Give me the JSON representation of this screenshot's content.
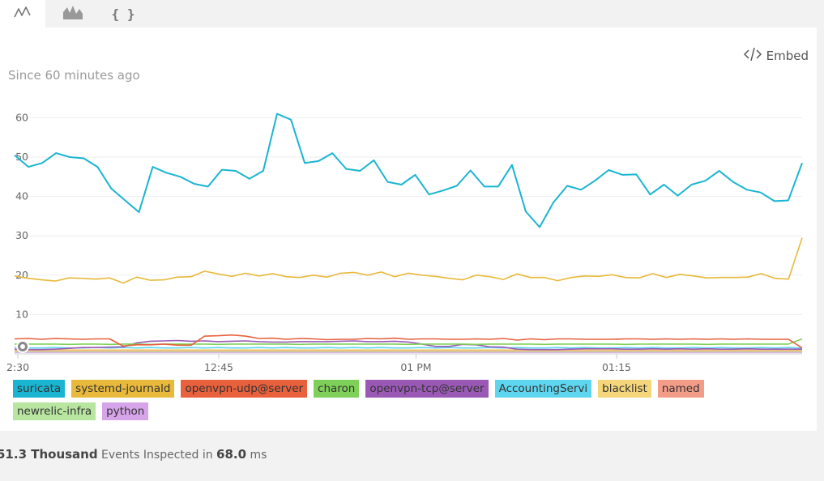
{
  "tabs": [
    {
      "name": "line-chart-icon",
      "active": true
    },
    {
      "name": "area-chart-icon",
      "active": false
    },
    {
      "name": "json-icon",
      "label": "{ }",
      "active": false
    }
  ],
  "header": {
    "since": "Since 60 minutes ago",
    "embed_label": "Embed"
  },
  "chart_data": {
    "type": "line",
    "x_ticks": [
      "2:30",
      "12:45",
      "01 PM",
      "01:15"
    ],
    "y_ticks": [
      10,
      20,
      30,
      40,
      50,
      60
    ],
    "ylim": [
      0,
      70
    ],
    "grid": true,
    "series": [
      {
        "name": "suricata",
        "color": "#1ab5d1",
        "values": [
          50.5,
          47.5,
          48.5,
          51,
          50,
          49.7,
          47.5,
          42,
          39,
          36,
          47.5,
          46,
          45,
          43.2,
          42.5,
          46.8,
          46.5,
          44.5,
          46.5,
          61,
          59.5,
          48.5,
          49,
          51,
          47,
          46.5,
          49.2,
          43.7,
          43,
          45.5,
          40.5,
          41.5,
          42.7,
          46.6,
          42.5,
          42.5,
          48,
          36.2,
          32.2,
          38.5,
          42.7,
          41.7,
          44,
          46.7,
          45.5,
          45.6,
          40.5,
          43,
          40.2,
          43,
          44,
          46.5,
          43.7,
          41.7,
          41,
          38.8,
          39,
          48.5
        ]
      },
      {
        "name": "systemd-journald",
        "color": "#e8b93a",
        "values": [
          19.8,
          19.2,
          18.8,
          18.5,
          19.3,
          19.2,
          19,
          19.3,
          18,
          19.5,
          18.7,
          18.8,
          19.5,
          19.6,
          21,
          20.3,
          19.7,
          20.5,
          19.8,
          20.4,
          19.6,
          19.4,
          20,
          19.5,
          20.5,
          20.7,
          20,
          20.8,
          19.6,
          20.5,
          20,
          19.7,
          19.2,
          18.8,
          20,
          19.6,
          18.9,
          20.3,
          19.4,
          19.4,
          18.6,
          19.4,
          19.8,
          19.7,
          20.1,
          19.4,
          19.3,
          20.4,
          19.4,
          20.2,
          19.8,
          19.3,
          19.4,
          19.4,
          19.5,
          20.4,
          19.2,
          19,
          29.5
        ]
      },
      {
        "name": "openvpn-udp@server",
        "color": "#e8603c",
        "values": [
          3.8,
          3.9,
          3.7,
          3.9,
          3.8,
          3.7,
          3.8,
          3.8,
          2,
          2.3,
          2.3,
          2.5,
          2.2,
          2.2,
          4.5,
          4.6,
          4.8,
          4.5,
          3.9,
          4,
          3.7,
          3.9,
          3.8,
          3.6,
          3.7,
          3.7,
          3.9,
          3.8,
          4,
          3.7,
          3.8,
          3.8,
          3.7,
          3.7,
          3.8,
          3.7,
          3.9,
          3.5,
          3.8,
          3.6,
          3.8,
          3.8,
          3.7,
          3.7,
          3.7,
          3.8,
          3.8,
          3.7,
          3.8,
          3.7,
          3.8,
          3.7,
          3.8,
          3.7,
          3.8,
          3.7,
          3.7,
          3.7,
          1.5
        ]
      },
      {
        "name": "charon",
        "color": "#7ed058",
        "values": [
          2.5,
          2.5,
          2.5,
          2.5,
          2.4,
          2.5,
          2.5,
          2.4,
          2.5,
          2.5,
          2.4,
          2.5,
          2.5,
          2.5,
          2.5,
          2.4,
          2.5,
          2.5,
          2.5,
          2.5,
          2.5,
          2.4,
          2.5,
          2.5,
          2.5,
          2.5,
          2.5,
          2.5,
          2.5,
          2.4,
          2.5,
          2.5,
          2.5,
          2.5,
          2.4,
          2.5,
          2.5,
          2.5,
          2.5,
          2.4,
          2.5,
          2.5,
          2.5,
          2.5,
          2.5,
          2.4,
          2.5,
          2.5,
          2.5,
          2.5,
          2.5,
          2.4,
          2.5,
          2.5,
          2.5,
          2.5,
          2.5,
          2.5,
          3.8
        ]
      },
      {
        "name": "openvpn-tcp@server",
        "color": "#9b59b6",
        "values": [
          1.2,
          1.1,
          1.1,
          1.2,
          1.4,
          1.6,
          1.6,
          1.7,
          1.8,
          2.8,
          3.2,
          3.3,
          3.4,
          3.2,
          3.3,
          3.1,
          3.2,
          3.3,
          3.1,
          3,
          3,
          3.1,
          3.1,
          3.1,
          3.2,
          3.3,
          3.1,
          3.1,
          3.2,
          3,
          2.5,
          1.9,
          1.9,
          2.4,
          2.3,
          1.8,
          1.7,
          1.2,
          1.1,
          1.1,
          1.1,
          1.2,
          1.3,
          1.3,
          1.3,
          1.2,
          1.2,
          1.3,
          1.2,
          1.3,
          1.2,
          1.3,
          1.2,
          1.2,
          1.3,
          1.2,
          1.2,
          1.2,
          1.2
        ]
      },
      {
        "name": "AccountingServi",
        "color": "#5ed6ef",
        "values": [
          1.6,
          1.5,
          1.5,
          1.6,
          1.5,
          1.5,
          1.6,
          1.5,
          1.6,
          1.5,
          1.6,
          1.5,
          1.5,
          1.6,
          1.5,
          1.6,
          1.5,
          1.5,
          1.6,
          1.5,
          1.6,
          1.5,
          1.5,
          1.6,
          1.5,
          1.6,
          1.5,
          1.6,
          1.5,
          1.5,
          1.6,
          1.5,
          1.6,
          1.5,
          1.5,
          1.6,
          1.5,
          1.6,
          1.5,
          1.5,
          1.6,
          1.5,
          1.6,
          1.5,
          1.5,
          1.6,
          1.5,
          1.6,
          1.5,
          1.5,
          1.6,
          1.5,
          1.6,
          1.5,
          1.5,
          1.6,
          1.5,
          1.6,
          1.5
        ]
      },
      {
        "name": "blacklist",
        "color": "#f5d67a",
        "values": [
          1.0,
          1.0,
          1.0,
          1.0,
          1.0,
          1.0,
          1.0,
          1.0,
          1.0,
          1.0,
          1.0,
          1.0,
          1.0,
          1.0,
          1.0,
          1.0,
          1.0,
          1.0,
          1.0,
          1.0,
          1.0,
          1.0,
          1.0,
          1.0,
          1.0,
          1.0,
          1.0,
          1.0,
          1.0,
          1.0,
          1.0,
          1.0,
          1.0,
          1.0,
          1.0,
          1.0,
          1.0,
          1.0,
          1.0,
          1.0,
          1.0,
          1.0,
          1.0,
          1.0,
          1.0,
          1.0,
          1.0,
          1.0,
          1.0,
          1.0,
          1.0,
          1.0,
          1.0,
          1.0,
          1.0,
          1.0,
          1.0,
          1.0,
          1.0
        ]
      },
      {
        "name": "named",
        "color": "#f39c88",
        "values": [
          0.8,
          0.8,
          0.8,
          0.8,
          0.8,
          0.8,
          0.8,
          0.8,
          0.8,
          0.8,
          0.8,
          0.8,
          0.8,
          0.8,
          0.8,
          0.8,
          0.8,
          0.8,
          0.8,
          0.8,
          0.8,
          0.8,
          0.8,
          0.8,
          0.8,
          0.8,
          0.8,
          0.8,
          0.8,
          0.8,
          0.8,
          0.8,
          0.8,
          0.8,
          0.8,
          0.8,
          0.8,
          0.8,
          0.8,
          0.8,
          0.8,
          0.8,
          0.8,
          0.8,
          0.8,
          0.8,
          0.8,
          0.8,
          0.8,
          0.8,
          0.8,
          0.8,
          0.8,
          0.8,
          0.8,
          0.8,
          0.8,
          0.8,
          0.8
        ]
      },
      {
        "name": "newrelic-infra",
        "color": "#b8e6a0",
        "values": [
          0.6,
          0.6,
          0.6,
          0.6,
          0.6,
          0.6,
          0.6,
          0.6,
          0.6,
          0.6,
          0.6,
          0.6,
          0.6,
          0.6,
          0.6,
          0.6,
          0.6,
          0.6,
          0.6,
          0.6,
          0.6,
          0.6,
          0.6,
          0.6,
          0.6,
          0.6,
          0.6,
          0.6,
          0.6,
          0.6,
          0.6,
          0.6,
          0.6,
          0.6,
          0.6,
          0.6,
          0.6,
          0.6,
          0.6,
          0.6,
          0.6,
          0.6,
          0.6,
          0.6,
          0.6,
          0.6,
          0.6,
          0.6,
          0.6,
          0.6,
          0.6,
          0.6,
          0.6,
          0.6,
          0.6,
          0.6,
          0.6,
          0.6,
          0.6
        ]
      },
      {
        "name": "python",
        "color": "#d6a4e8",
        "values": [
          0.4,
          0.4,
          0.4,
          0.4,
          0.4,
          0.4,
          0.4,
          0.4,
          0.4,
          0.4,
          0.4,
          0.4,
          0.4,
          0.4,
          0.4,
          0.4,
          0.4,
          0.4,
          0.4,
          0.4,
          0.4,
          0.4,
          0.4,
          0.4,
          0.4,
          0.4,
          0.4,
          0.4,
          0.4,
          0.4,
          0.4,
          0.4,
          0.4,
          0.4,
          0.4,
          0.4,
          0.4,
          0.4,
          0.4,
          0.4,
          0.4,
          0.4,
          0.4,
          0.4,
          0.4,
          0.4,
          0.4,
          0.4,
          0.4,
          0.4,
          0.4,
          0.4,
          0.4,
          0.4,
          0.4,
          0.4,
          0.4,
          0.4,
          0.4
        ]
      }
    ]
  },
  "footer": {
    "count": "51.3 Thousand",
    "mid": "Events Inspected in",
    "duration": "68.0",
    "unit": "ms"
  }
}
